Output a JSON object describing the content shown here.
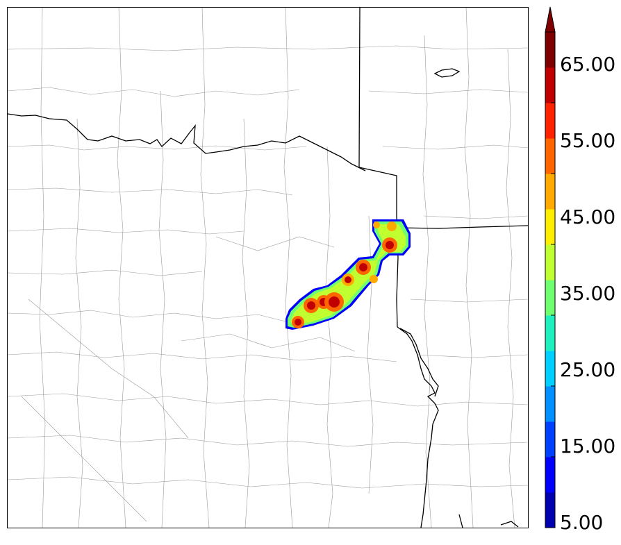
{
  "colorbar": {
    "tick_labels": [
      "5.00",
      "15.00",
      "25.00",
      "35.00",
      "45.00",
      "55.00",
      "65.00"
    ],
    "levels": [
      5,
      10,
      15,
      20,
      25,
      30,
      35,
      40,
      45,
      50,
      55,
      60,
      65,
      70
    ],
    "colors": [
      "#0000b0",
      "#0000ff",
      "#0040ff",
      "#0090ff",
      "#00d0ff",
      "#20f0c0",
      "#70ff70",
      "#c0ff30",
      "#ffee00",
      "#ffaa00",
      "#ff6600",
      "#ff2200",
      "#c00000",
      "#800000"
    ],
    "extend": "max"
  },
  "map": {
    "background": "#ffffff",
    "county_line_color": "#9a9a9a",
    "state_line_color": "#000000"
  }
}
